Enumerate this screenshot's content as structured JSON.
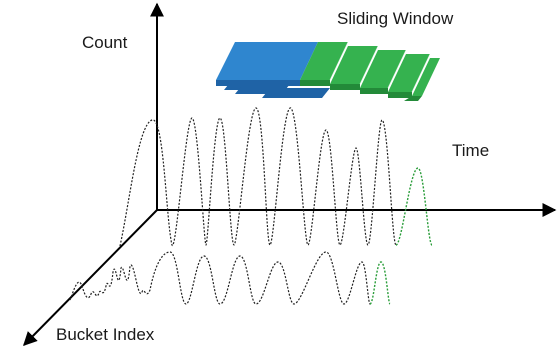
{
  "labels": {
    "count": "Count",
    "time": "Time",
    "bucket_index": "Bucket Index",
    "sliding_window": "Sliding Window"
  },
  "colors": {
    "axis": "#000000",
    "wave": "#222222",
    "wave_new": "#2a9d3a",
    "window_blue": "#2f86cf",
    "window_blue_dark": "#1f63a6",
    "window_green": "#35b24f",
    "window_green_dark": "#238a39"
  }
}
